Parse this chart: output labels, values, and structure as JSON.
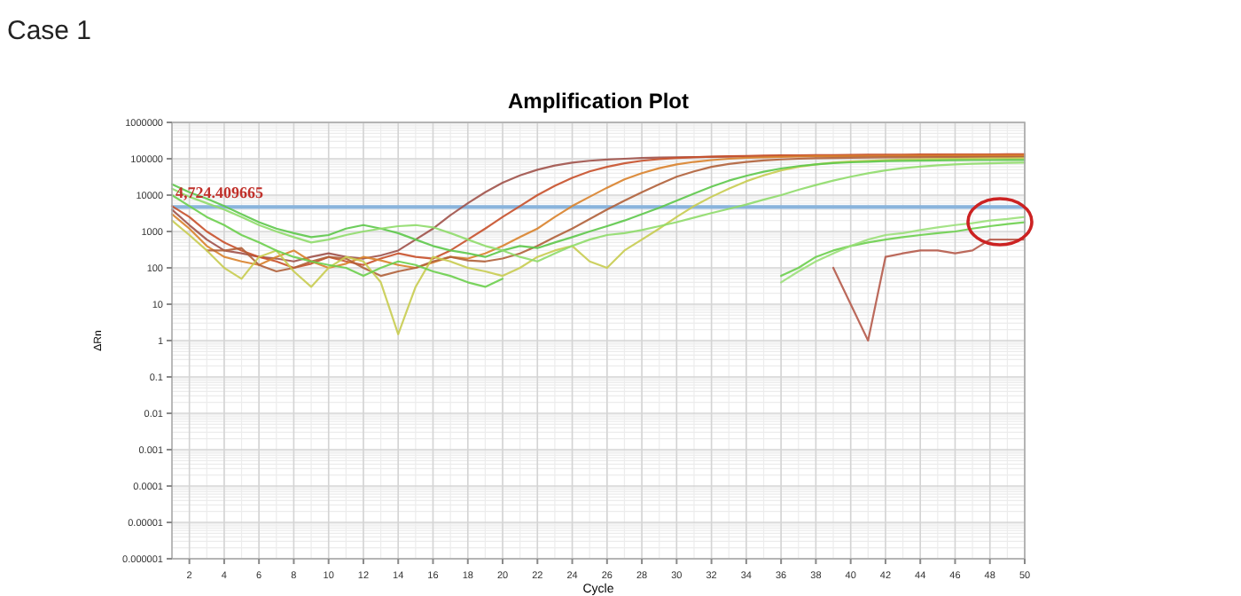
{
  "chart_data": {
    "type": "line",
    "title": "Amplification Plot",
    "xlabel": "Cycle",
    "ylabel": "ΔRn",
    "annotations": [
      "Case 1"
    ],
    "log": "y",
    "grid": true,
    "marker": "none",
    "line_style": "solid",
    "x": [
      1,
      2,
      3,
      4,
      5,
      6,
      7,
      8,
      9,
      10,
      11,
      12,
      13,
      14,
      15,
      16,
      17,
      18,
      19,
      20,
      21,
      22,
      23,
      24,
      25,
      26,
      27,
      28,
      29,
      30,
      31,
      32,
      33,
      34,
      35,
      36,
      37,
      38,
      39,
      40,
      41,
      42,
      43,
      44,
      45,
      46,
      47,
      48,
      49,
      50
    ],
    "xlim": [
      1,
      50
    ],
    "xticks": [
      2,
      4,
      6,
      8,
      10,
      12,
      14,
      16,
      18,
      20,
      22,
      24,
      26,
      28,
      30,
      32,
      34,
      36,
      38,
      40,
      42,
      44,
      46,
      48,
      50
    ],
    "ylim": [
      1e-06,
      1000000
    ],
    "yticks": [
      {
        "value": 1e-06,
        "label": "0.000001"
      },
      {
        "value": 1e-05,
        "label": "0.00001"
      },
      {
        "value": 0.0001,
        "label": "0.0001"
      },
      {
        "value": 0.001,
        "label": "0.001"
      },
      {
        "value": 0.01,
        "label": "0.01"
      },
      {
        "value": 0.1,
        "label": "0.1"
      },
      {
        "value": 1,
        "label": "1"
      },
      {
        "value": 10,
        "label": "10"
      },
      {
        "value": 100,
        "label": "100"
      },
      {
        "value": 1000,
        "label": "1000"
      },
      {
        "value": 10000,
        "label": "10000"
      },
      {
        "value": 100000,
        "label": "100000"
      },
      {
        "value": 1000000,
        "label": "1000000"
      }
    ],
    "ref_lines": [
      {
        "axis": "y",
        "value": 4724.409665,
        "label": "4,724.409665",
        "color": "#8ab4dc"
      }
    ],
    "series": [
      {
        "color": "#a0524a",
        "values": [
          4000,
          1500,
          600,
          300,
          250,
          200,
          180,
          150,
          200,
          250,
          200,
          180,
          220,
          300,
          600,
          1200,
          2800,
          6000,
          12000,
          22000,
          35000,
          50000,
          65000,
          78000,
          88000,
          95000,
          100000,
          105000,
          108000,
          110000,
          112000,
          113000,
          114000,
          115000,
          116000,
          117000,
          118000,
          118000,
          119000,
          119000,
          120000,
          120000,
          121000,
          121000,
          122000,
          122000,
          122000,
          123000,
          123000,
          123000
        ]
      },
      {
        "color": "#c8502a",
        "values": [
          5000,
          2500,
          1000,
          500,
          300,
          200,
          150,
          100,
          130,
          200,
          150,
          120,
          180,
          250,
          200,
          180,
          300,
          600,
          1200,
          2500,
          5000,
          10000,
          18000,
          30000,
          45000,
          60000,
          75000,
          88000,
          98000,
          105000,
          110000,
          114000,
          117000,
          120000,
          122000,
          124000,
          125000,
          126000,
          127000,
          128000,
          129000,
          130000,
          130000,
          131000,
          131000,
          132000,
          132000,
          132000,
          133000,
          133000
        ]
      },
      {
        "color": "#d9822b",
        "values": [
          3000,
          1200,
          400,
          200,
          150,
          120,
          200,
          300,
          150,
          100,
          130,
          200,
          160,
          120,
          100,
          140,
          200,
          180,
          250,
          400,
          700,
          1200,
          2500,
          5000,
          9000,
          16000,
          27000,
          40000,
          55000,
          70000,
          82000,
          92000,
          100000,
          106000,
          110000,
          113000,
          115000,
          117000,
          118000,
          119000,
          120000,
          120000,
          121000,
          121000,
          121000,
          122000,
          122000,
          122000,
          122000,
          122000
        ]
      },
      {
        "color": "#b0603a",
        "values": [
          null,
          null,
          300,
          300,
          350,
          120,
          80,
          100,
          150,
          200,
          180,
          100,
          60,
          80,
          100,
          150,
          200,
          160,
          150,
          180,
          250,
          400,
          700,
          1200,
          2200,
          4000,
          7000,
          12000,
          20000,
          32000,
          45000,
          60000,
          72000,
          82000,
          90000,
          96000,
          100000,
          103000,
          105000,
          107000,
          108000,
          109000,
          110000,
          110000,
          111000,
          111000,
          112000,
          112000,
          112000,
          112000
        ]
      },
      {
        "color": "#c8cc50",
        "values": [
          2000,
          800,
          300,
          100,
          50,
          200,
          300,
          80,
          30,
          100,
          200,
          150,
          40,
          1.5,
          30,
          200,
          150,
          100,
          80,
          60,
          100,
          200,
          300,
          400,
          150,
          100,
          300,
          600,
          1200,
          2500,
          5000,
          9000,
          15000,
          24000,
          35000,
          48000,
          60000,
          70000,
          78000,
          84000,
          88000,
          92000,
          95000,
          97000,
          99000,
          100000,
          101000,
          102000,
          102000,
          103000
        ]
      },
      {
        "color": "#5dc84a",
        "values": [
          20000,
          12000,
          8000,
          5000,
          3000,
          1800,
          1200,
          900,
          700,
          800,
          1200,
          1500,
          1200,
          900,
          600,
          400,
          300,
          250,
          200,
          300,
          400,
          350,
          500,
          700,
          1000,
          1400,
          2000,
          3000,
          4500,
          7000,
          11000,
          17000,
          25000,
          34000,
          44000,
          54000,
          63000,
          70000,
          76000,
          80000,
          83000,
          86000,
          88000,
          89000,
          90000,
          91000,
          92000,
          92000,
          93000,
          93000
        ]
      },
      {
        "color": "#8fdb6a",
        "values": [
          15000,
          9000,
          6000,
          4000,
          2500,
          1500,
          1000,
          700,
          500,
          600,
          800,
          1000,
          1200,
          1400,
          1500,
          1300,
          900,
          600,
          400,
          300,
          200,
          150,
          250,
          400,
          600,
          800,
          900,
          1100,
          1400,
          1800,
          2400,
          3200,
          4200,
          5500,
          7500,
          10000,
          14000,
          19000,
          25000,
          32000,
          40000,
          48000,
          55000,
          61000,
          66000,
          70000,
          73000,
          75000,
          77000,
          78000
        ]
      },
      {
        "color": "#6ccf4d",
        "values": [
          10000,
          5000,
          2500,
          1500,
          800,
          500,
          300,
          200,
          150,
          120,
          100,
          60,
          100,
          150,
          120,
          80,
          60,
          40,
          30,
          50,
          null,
          null,
          null,
          null,
          null,
          null,
          null,
          null,
          null,
          null,
          null,
          null,
          null,
          null,
          null,
          60,
          100,
          200,
          300,
          400,
          500,
          600,
          700,
          800,
          900,
          1000,
          1200,
          1400,
          1600,
          1800
        ]
      },
      {
        "color": "#9be07a",
        "values": [
          null,
          null,
          null,
          null,
          null,
          null,
          null,
          null,
          null,
          null,
          null,
          null,
          null,
          null,
          null,
          null,
          null,
          null,
          null,
          null,
          null,
          null,
          null,
          null,
          null,
          null,
          null,
          null,
          null,
          null,
          null,
          null,
          null,
          null,
          null,
          40,
          80,
          150,
          250,
          400,
          600,
          800,
          900,
          1100,
          1300,
          1500,
          1700,
          2000,
          2200,
          2500
        ]
      },
      {
        "color": "#b55a4a",
        "values": [
          null,
          null,
          null,
          null,
          null,
          null,
          null,
          null,
          null,
          null,
          null,
          null,
          null,
          null,
          null,
          null,
          null,
          null,
          null,
          null,
          null,
          null,
          null,
          null,
          null,
          null,
          null,
          null,
          null,
          null,
          null,
          null,
          null,
          null,
          null,
          null,
          null,
          null,
          100,
          10,
          1,
          200,
          250,
          300,
          300,
          250,
          300,
          600,
          600,
          600
        ]
      }
    ]
  }
}
